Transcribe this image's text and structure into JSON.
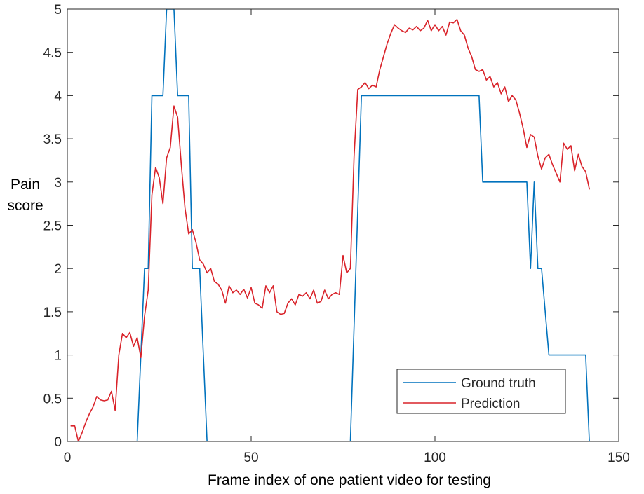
{
  "chart_data": {
    "type": "line",
    "xlabel": "Frame index of one patient video for testing",
    "ylabel_lines": [
      "Pain",
      "score"
    ],
    "xlim": [
      0,
      150
    ],
    "ylim": [
      0,
      5
    ],
    "xticks": [
      0,
      50,
      100,
      150
    ],
    "yticks": [
      0,
      0.5,
      1,
      1.5,
      2,
      2.5,
      3,
      3.5,
      4,
      4.5,
      5
    ],
    "xtick_labels": [
      "0",
      "50",
      "100",
      "150"
    ],
    "ytick_labels": [
      "0",
      "0.5",
      "1",
      "1.5",
      "2",
      "2.5",
      "3",
      "3.5",
      "4",
      "4.5",
      "5"
    ],
    "grid": false,
    "box": true,
    "legend": {
      "position": "bottom-right"
    },
    "series": [
      {
        "name": "Ground truth",
        "color": "#0072BD",
        "points": [
          [
            0,
            0
          ],
          [
            19,
            0
          ],
          [
            21,
            2
          ],
          [
            22,
            2
          ],
          [
            23,
            4
          ],
          [
            26,
            4
          ],
          [
            27,
            5
          ],
          [
            29,
            5
          ],
          [
            30,
            4
          ],
          [
            33,
            4
          ],
          [
            34,
            2
          ],
          [
            36,
            2
          ],
          [
            38,
            0
          ],
          [
            77,
            0
          ],
          [
            80,
            4
          ],
          [
            112,
            4
          ],
          [
            113,
            3
          ],
          [
            125,
            3
          ],
          [
            126,
            2
          ],
          [
            127,
            3
          ],
          [
            128,
            2
          ],
          [
            129,
            2
          ],
          [
            131,
            1
          ],
          [
            141,
            1
          ],
          [
            142,
            0
          ],
          [
            144,
            0
          ]
        ]
      },
      {
        "name": "Prediction",
        "color": "#D9232A",
        "points": [
          [
            1,
            0.18
          ],
          [
            2,
            0.18
          ],
          [
            3,
            0.0
          ],
          [
            4,
            0.1
          ],
          [
            5,
            0.22
          ],
          [
            6,
            0.32
          ],
          [
            7,
            0.4
          ],
          [
            8,
            0.52
          ],
          [
            9,
            0.48
          ],
          [
            10,
            0.47
          ],
          [
            11,
            0.48
          ],
          [
            12,
            0.58
          ],
          [
            13,
            0.36
          ],
          [
            14,
            1.0
          ],
          [
            15,
            1.25
          ],
          [
            16,
            1.2
          ],
          [
            17,
            1.26
          ],
          [
            18,
            1.1
          ],
          [
            19,
            1.2
          ],
          [
            20,
            0.97
          ],
          [
            21,
            1.45
          ],
          [
            22,
            1.75
          ],
          [
            23,
            2.85
          ],
          [
            24,
            3.17
          ],
          [
            25,
            3.05
          ],
          [
            26,
            2.75
          ],
          [
            27,
            3.28
          ],
          [
            28,
            3.4
          ],
          [
            29,
            3.88
          ],
          [
            30,
            3.75
          ],
          [
            31,
            3.2
          ],
          [
            32,
            2.7
          ],
          [
            33,
            2.4
          ],
          [
            34,
            2.45
          ],
          [
            35,
            2.3
          ],
          [
            36,
            2.1
          ],
          [
            37,
            2.05
          ],
          [
            38,
            1.95
          ],
          [
            39,
            2.0
          ],
          [
            40,
            1.85
          ],
          [
            41,
            1.82
          ],
          [
            42,
            1.75
          ],
          [
            43,
            1.6
          ],
          [
            44,
            1.8
          ],
          [
            45,
            1.72
          ],
          [
            46,
            1.75
          ],
          [
            47,
            1.7
          ],
          [
            48,
            1.76
          ],
          [
            49,
            1.66
          ],
          [
            50,
            1.78
          ],
          [
            51,
            1.6
          ],
          [
            52,
            1.58
          ],
          [
            53,
            1.54
          ],
          [
            54,
            1.8
          ],
          [
            55,
            1.72
          ],
          [
            56,
            1.8
          ],
          [
            57,
            1.5
          ],
          [
            58,
            1.47
          ],
          [
            59,
            1.48
          ],
          [
            60,
            1.6
          ],
          [
            61,
            1.65
          ],
          [
            62,
            1.58
          ],
          [
            63,
            1.7
          ],
          [
            64,
            1.68
          ],
          [
            65,
            1.72
          ],
          [
            66,
            1.65
          ],
          [
            67,
            1.75
          ],
          [
            68,
            1.6
          ],
          [
            69,
            1.62
          ],
          [
            70,
            1.75
          ],
          [
            71,
            1.65
          ],
          [
            72,
            1.7
          ],
          [
            73,
            1.72
          ],
          [
            74,
            1.7
          ],
          [
            75,
            2.15
          ],
          [
            76,
            1.95
          ],
          [
            77,
            2.0
          ],
          [
            78,
            3.3
          ],
          [
            79,
            4.07
          ],
          [
            80,
            4.1
          ],
          [
            81,
            4.15
          ],
          [
            82,
            4.08
          ],
          [
            83,
            4.12
          ],
          [
            84,
            4.1
          ],
          [
            85,
            4.3
          ],
          [
            86,
            4.45
          ],
          [
            87,
            4.6
          ],
          [
            88,
            4.72
          ],
          [
            89,
            4.82
          ],
          [
            90,
            4.78
          ],
          [
            91,
            4.75
          ],
          [
            92,
            4.73
          ],
          [
            93,
            4.78
          ],
          [
            94,
            4.76
          ],
          [
            95,
            4.8
          ],
          [
            96,
            4.75
          ],
          [
            97,
            4.78
          ],
          [
            98,
            4.87
          ],
          [
            99,
            4.75
          ],
          [
            100,
            4.82
          ],
          [
            101,
            4.75
          ],
          [
            102,
            4.8
          ],
          [
            103,
            4.7
          ],
          [
            104,
            4.85
          ],
          [
            105,
            4.84
          ],
          [
            106,
            4.88
          ],
          [
            107,
            4.75
          ],
          [
            108,
            4.7
          ],
          [
            109,
            4.55
          ],
          [
            110,
            4.45
          ],
          [
            111,
            4.3
          ],
          [
            112,
            4.28
          ],
          [
            113,
            4.3
          ],
          [
            114,
            4.18
          ],
          [
            115,
            4.22
          ],
          [
            116,
            4.1
          ],
          [
            117,
            4.15
          ],
          [
            118,
            4.02
          ],
          [
            119,
            4.1
          ],
          [
            120,
            3.93
          ],
          [
            121,
            4.0
          ],
          [
            122,
            3.95
          ],
          [
            123,
            3.8
          ],
          [
            124,
            3.62
          ],
          [
            125,
            3.4
          ],
          [
            126,
            3.55
          ],
          [
            127,
            3.52
          ],
          [
            128,
            3.3
          ],
          [
            129,
            3.15
          ],
          [
            130,
            3.28
          ],
          [
            131,
            3.32
          ],
          [
            132,
            3.2
          ],
          [
            133,
            3.1
          ],
          [
            134,
            3.0
          ],
          [
            135,
            3.45
          ],
          [
            136,
            3.38
          ],
          [
            137,
            3.42
          ],
          [
            138,
            3.13
          ],
          [
            139,
            3.32
          ],
          [
            140,
            3.18
          ],
          [
            141,
            3.12
          ],
          [
            142,
            2.92
          ]
        ]
      }
    ]
  }
}
